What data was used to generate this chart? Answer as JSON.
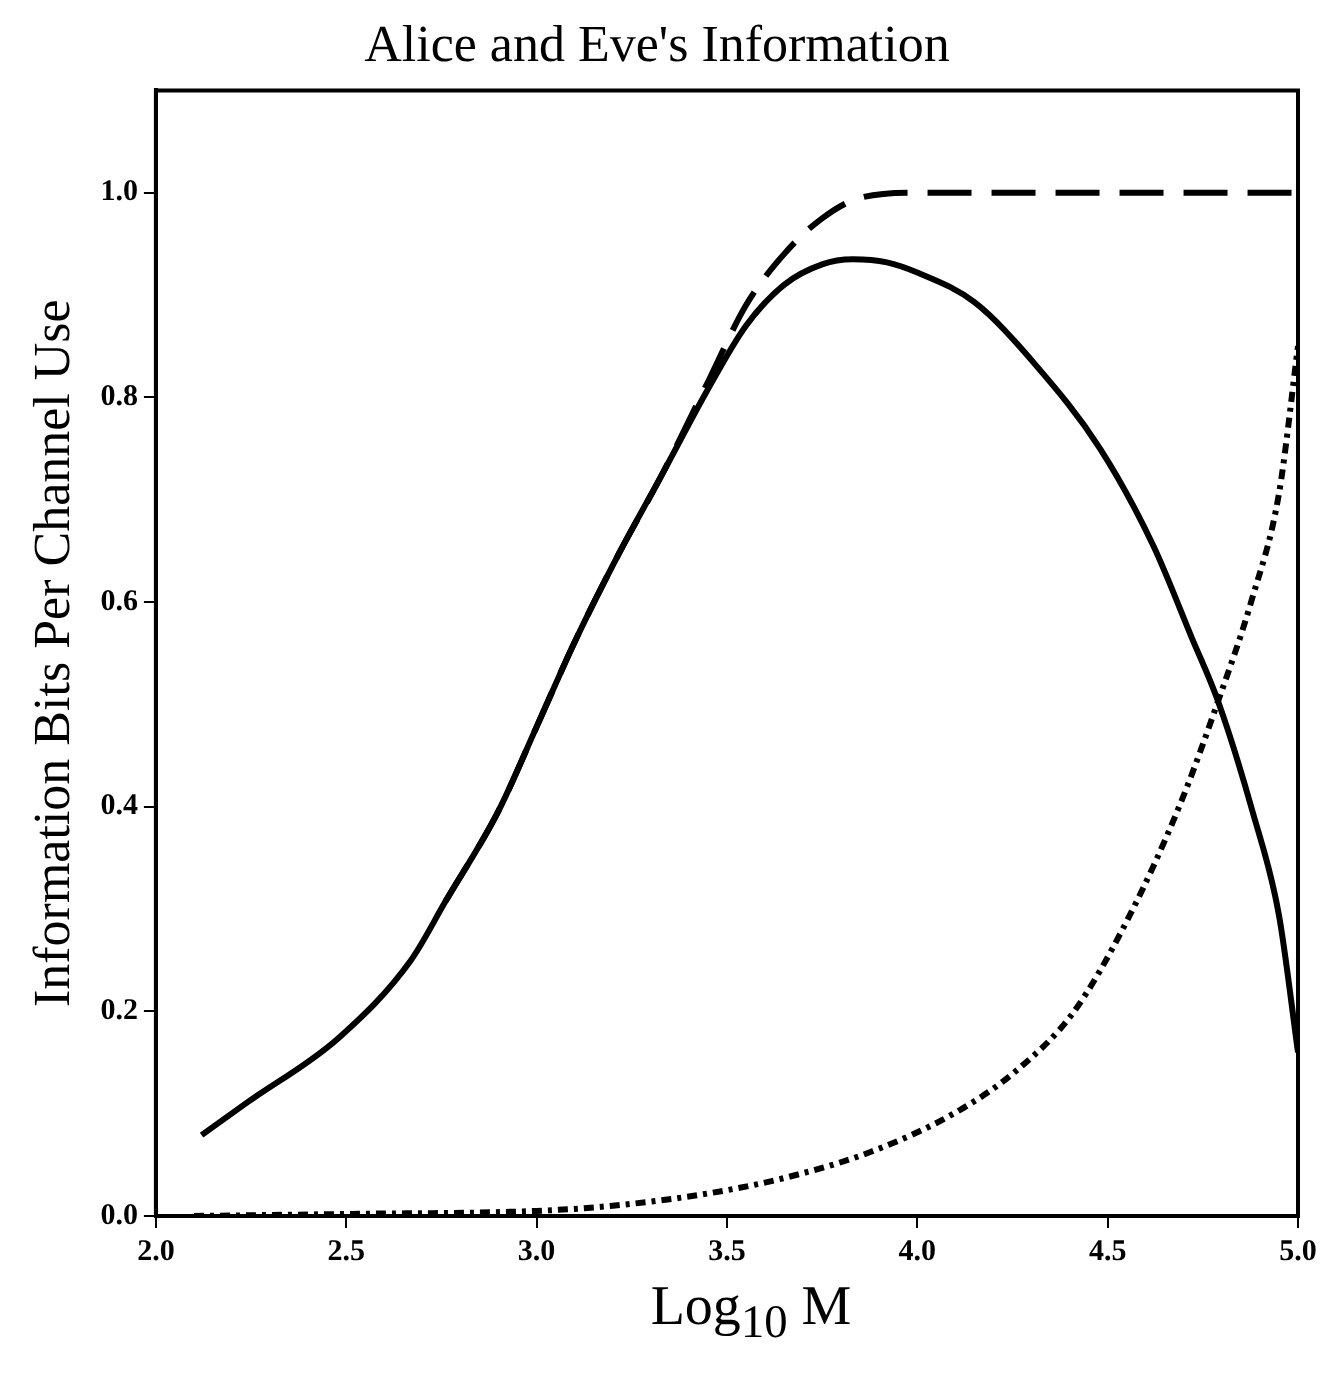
{
  "chart_data": {
    "type": "line",
    "title": "Alice and Eve's Information",
    "xlabel": "Log$_{10}$ M",
    "ylabel": "Information Bits Per Channel Use",
    "xlim": [
      2.0,
      5.0
    ],
    "ylim": [
      0,
      1.1
    ],
    "xticks": [
      {
        "value": 2,
        "label": "2.0"
      },
      {
        "value": 2.5,
        "label": "2.5"
      },
      {
        "value": 3,
        "label": "3.0"
      },
      {
        "value": 3.5,
        "label": "3.5"
      },
      {
        "value": 4,
        "label": "4.0"
      },
      {
        "value": 4.5,
        "label": "4.5"
      },
      {
        "value": 5,
        "label": "5.0"
      }
    ],
    "yticks": [
      {
        "value": 0,
        "label": "0.0"
      },
      {
        "value": 0.2,
        "label": "0.2"
      },
      {
        "value": 0.4,
        "label": "0.4"
      },
      {
        "value": 0.6,
        "label": "0.6"
      },
      {
        "value": 0.8,
        "label": "0.8"
      },
      {
        "value": 1.0,
        "label": "1.0"
      }
    ],
    "grid": false,
    "legend": false,
    "marker": "none",
    "series": [
      {
        "color": "#000000",
        "line_style": "solid",
        "x": [
          2.12,
          2.24,
          2.48,
          2.67,
          2.76,
          2.9,
          3.0,
          3.1,
          3.21,
          3.33,
          3.45,
          3.55,
          3.65,
          3.75,
          3.83,
          3.92,
          4.0,
          4.15,
          4.31,
          4.48,
          4.62,
          4.72,
          4.79,
          4.88,
          4.95,
          5.0
        ],
        "values": [
          0.079,
          0.111,
          0.174,
          0.25,
          0.307,
          0.396,
          0.478,
          0.561,
          0.643,
          0.725,
          0.808,
          0.87,
          0.91,
          0.93,
          0.935,
          0.932,
          0.922,
          0.893,
          0.832,
          0.75,
          0.655,
          0.566,
          0.503,
          0.396,
          0.294,
          0.16
        ]
      },
      {
        "color": "#000000",
        "line_style": "dashed",
        "x": [
          2.76,
          2.9,
          3.0,
          3.1,
          3.21,
          3.33,
          3.45,
          3.55,
          3.65,
          3.75,
          3.85,
          4.0,
          4.5,
          5.0
        ],
        "values": [
          0.307,
          0.396,
          0.478,
          0.561,
          0.643,
          0.725,
          0.815,
          0.89,
          0.94,
          0.975,
          0.995,
          1.0,
          1.0,
          1.0
        ]
      },
      {
        "color": "#000000",
        "line_style": "dotted",
        "x": [
          2.1,
          2.5,
          3.0,
          3.2,
          3.45,
          3.66,
          3.88,
          4.1,
          4.26,
          4.41,
          4.55,
          4.69,
          4.79,
          4.88,
          4.95,
          5.0
        ],
        "values": [
          0.0,
          0.002,
          0.005,
          0.01,
          0.022,
          0.038,
          0.063,
          0.101,
          0.142,
          0.199,
          0.288,
          0.402,
          0.503,
          0.604,
          0.706,
          0.85
        ]
      }
    ]
  }
}
